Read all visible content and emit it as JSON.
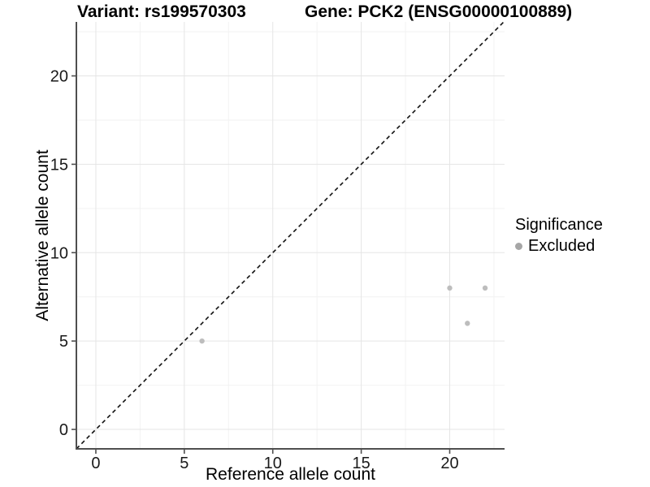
{
  "chart_data": {
    "type": "scatter",
    "title_left": "Variant: rs199570303",
    "title_right": "Gene: PCK2 (ENSG00000100889)",
    "xlabel": "Reference allele count",
    "ylabel": "Alternative allele count",
    "axis_range": [
      -1.1,
      23.1
    ],
    "x_ticks": [
      0,
      5,
      10,
      15,
      20
    ],
    "y_ticks": [
      0,
      5,
      10,
      15,
      20
    ],
    "minor_gridlines": [
      2.5,
      7.5,
      12.5,
      17.5,
      22.5
    ],
    "grid": true,
    "diagonal_line": {
      "slope": 1,
      "intercept": 0,
      "style": "dashed",
      "color": "#111111"
    },
    "series": [
      {
        "name": "Excluded",
        "color": "#bdbdbd",
        "points": [
          {
            "x": 6,
            "y": 5
          },
          {
            "x": 20,
            "y": 8
          },
          {
            "x": 21,
            "y": 6
          },
          {
            "x": 22,
            "y": 8
          }
        ]
      }
    ],
    "legend": {
      "title": "Significance",
      "position": "right",
      "entries": [
        {
          "label": "Excluded",
          "color": "#a6a6a6"
        }
      ]
    },
    "colors": {
      "major_grid": "#e5e5e5",
      "minor_grid": "#f2f2f2",
      "axis_line": "#4f4f4f",
      "tick_text": "#1a1a1a"
    }
  }
}
